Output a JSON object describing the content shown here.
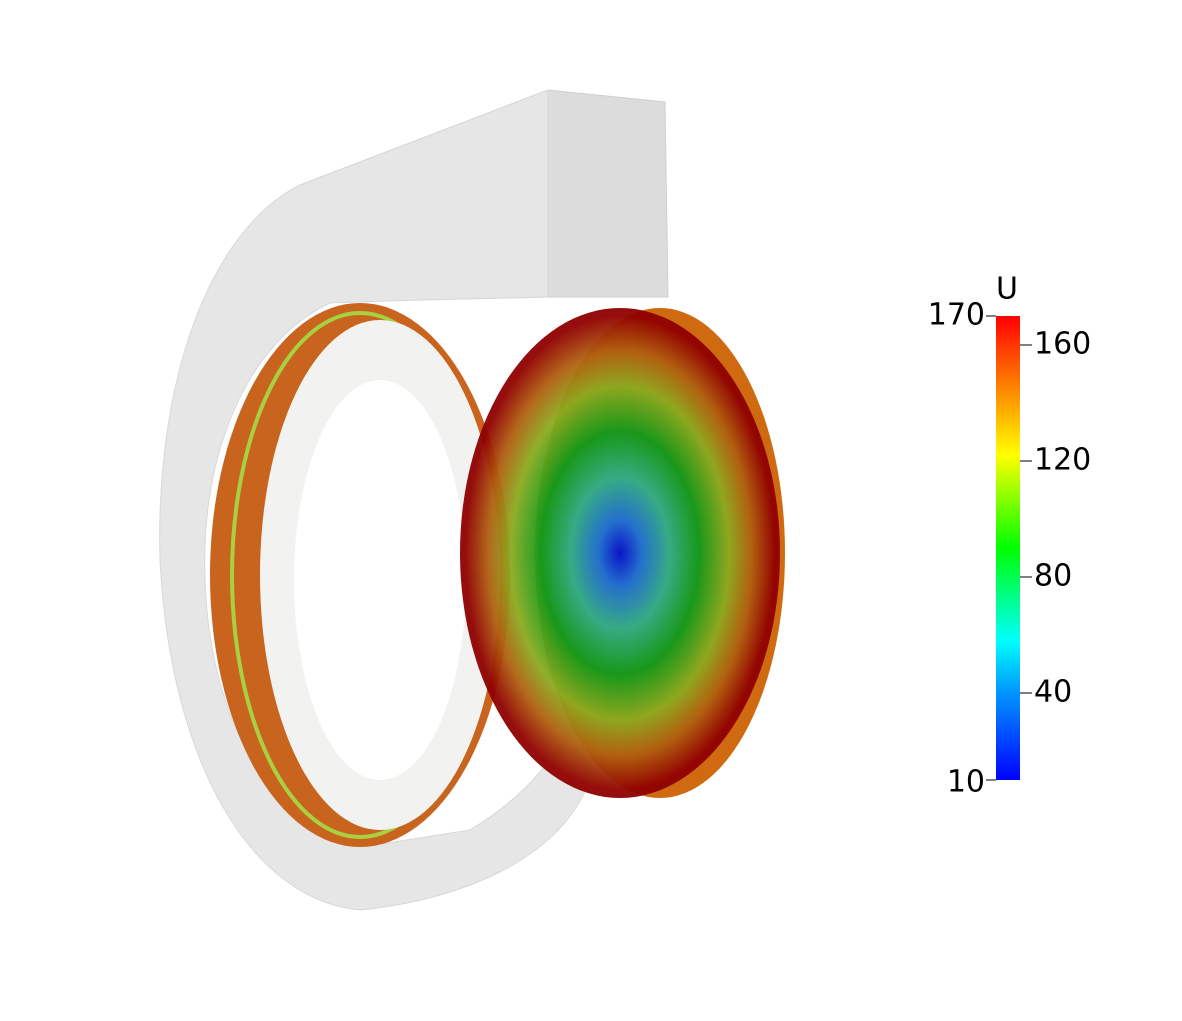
{
  "colorbar": {
    "title": "U",
    "range": [
      10,
      170
    ],
    "ticks": [
      40,
      80,
      120,
      160
    ]
  }
}
